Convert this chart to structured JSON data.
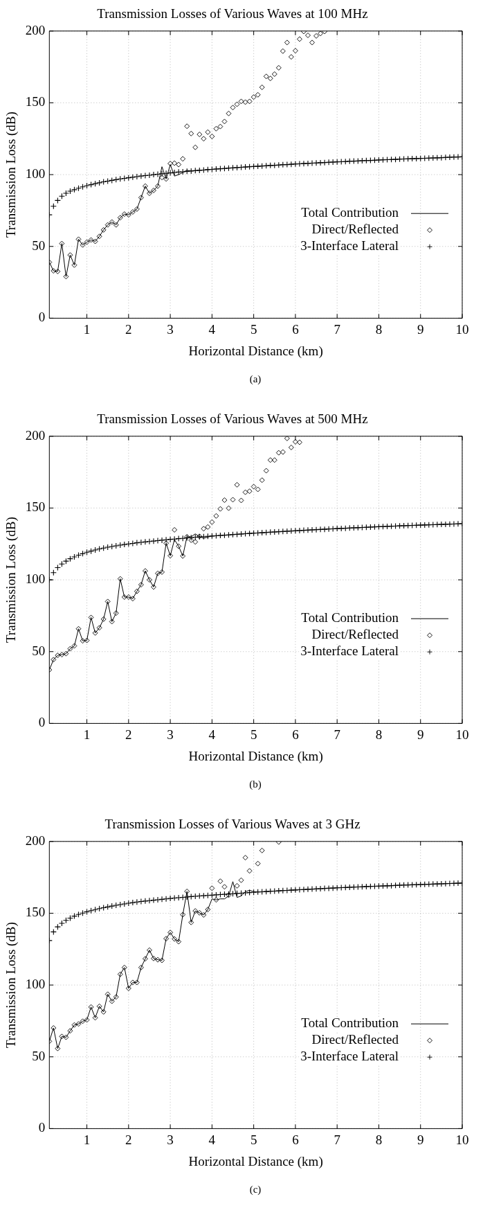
{
  "chart_data": [
    {
      "type": "line",
      "title": "Transmission Losses of Various Waves at 100 MHz",
      "xlabel": "Horizontal Distance (km)",
      "ylabel": "Transmission Loss (dB)",
      "xlim": [
        0.1,
        10
      ],
      "xticks": [
        1,
        2,
        3,
        4,
        5,
        6,
        7,
        8,
        9,
        10
      ],
      "ylim": [
        0,
        200
      ],
      "yticks": [
        0,
        50,
        100,
        150,
        200
      ],
      "grid": true,
      "legend": "bottom right",
      "annotations": [
        "(a)"
      ],
      "series": [
        {
          "name": "Total Contribution",
          "type": "line",
          "marker": "none",
          "color": "#000000",
          "x": [
            0.1,
            0.2,
            0.3,
            0.4,
            0.5,
            0.6,
            0.7,
            0.8,
            0.9,
            1.0,
            1.1,
            1.2,
            1.3,
            1.4,
            1.5,
            1.6,
            1.7,
            1.8,
            1.9,
            2.0,
            2.1,
            2.2,
            2.3,
            2.4,
            2.5,
            2.6,
            2.7,
            2.8,
            2.9,
            3.0,
            3.1,
            3.2,
            3.3,
            3.4,
            3.5,
            3.6,
            3.7,
            3.8,
            3.9,
            4.0,
            4.1,
            4.2,
            4.3,
            4.4,
            4.5,
            4.6,
            4.7,
            4.8,
            4.9,
            5.0,
            5.1,
            5.2,
            5.3,
            5.4,
            5.5,
            5.6,
            5.7,
            5.8,
            5.9,
            6.0,
            6.1,
            6.2,
            6.3,
            6.4,
            6.5,
            6.6,
            6.7,
            6.8,
            6.9,
            7.0,
            7.1,
            7.2,
            7.3,
            7.4,
            7.5,
            7.6,
            7.7,
            7.8,
            7.9,
            8.0,
            8.1,
            8.2,
            8.3,
            8.4,
            8.5,
            8.6,
            8.7,
            8.8,
            8.9,
            9.0,
            9.1,
            9.2,
            9.3,
            9.4,
            9.5,
            9.6,
            9.7,
            9.8,
            9.9,
            10.0
          ],
          "values": [
            39,
            33,
            32.6,
            52,
            29,
            44,
            37,
            55,
            51,
            53,
            54.5,
            53.5,
            57,
            61.5,
            65,
            67,
            65,
            70,
            72.5,
            72,
            74,
            76,
            84,
            92,
            87,
            89,
            92,
            105.5,
            97,
            107,
            99,
            100,
            101.5,
            103,
            102.5,
            102.8,
            103,
            103.2,
            103.5,
            103.7,
            103.9,
            104.1,
            104.3,
            104.5,
            104.7,
            104.9,
            105.1,
            105.3,
            105.5,
            105.7,
            105.8,
            106,
            106.2,
            106.4,
            106.5,
            106.7,
            106.9,
            107,
            107.2,
            107.4,
            107.5,
            107.7,
            107.8,
            108,
            108.1,
            108.3,
            108.4,
            108.6,
            108.7,
            108.9,
            109,
            109.1,
            109.3,
            109.4,
            109.5,
            109.7,
            109.8,
            109.9,
            110,
            110.2,
            110.3,
            110.4,
            110.5,
            110.6,
            110.8,
            110.9,
            111,
            111.1,
            111.2,
            111.3,
            111.4,
            111.5,
            111.6,
            111.7,
            111.8,
            112,
            112.1,
            112.2,
            112.3,
            112.4
          ]
        },
        {
          "name": "Direct/Reflected",
          "type": "scatter",
          "marker": "diamond",
          "color": "#000000",
          "x": [
            0.1,
            0.2,
            0.3,
            0.4,
            0.5,
            0.6,
            0.7,
            0.8,
            0.9,
            1.0,
            1.1,
            1.2,
            1.3,
            1.4,
            1.5,
            1.6,
            1.7,
            1.8,
            1.9,
            2.0,
            2.1,
            2.2,
            2.3,
            2.4,
            2.5,
            2.6,
            2.7,
            2.8,
            2.9,
            3.0,
            3.1,
            3.2,
            3.3,
            3.4,
            3.5,
            3.6,
            3.7,
            3.8,
            3.9,
            4.0,
            4.1,
            4.2,
            4.3,
            4.4,
            4.5,
            4.6,
            4.7,
            4.8,
            4.9,
            5.0,
            5.1,
            5.2,
            5.3,
            5.4,
            5.5,
            5.6,
            5.7,
            5.8,
            5.9,
            6.0,
            6.1,
            6.2,
            6.3,
            6.4,
            6.5,
            6.6,
            6.7
          ],
          "values": [
            39,
            33,
            32.6,
            52,
            29,
            44,
            37,
            55,
            51,
            53,
            54.5,
            53.5,
            57,
            61.5,
            65,
            67,
            65,
            70,
            72.5,
            72,
            74,
            76,
            84,
            92,
            87,
            89,
            92,
            98,
            97,
            107.7,
            108,
            107,
            111,
            133.7,
            128.6,
            119,
            128,
            125,
            129.6,
            126.6,
            132,
            133.5,
            137,
            142.6,
            146.7,
            149,
            151,
            150.5,
            151,
            154,
            155.6,
            160.8,
            168.4,
            167,
            170,
            174.4,
            186,
            192,
            182,
            186.3,
            194.4,
            199.7,
            197,
            192,
            196.6,
            198.3,
            199.7
          ]
        },
        {
          "name": "3-Interface Lateral",
          "type": "scatter",
          "marker": "cross",
          "color": "#000000",
          "x": [
            0.1,
            0.2,
            0.3,
            0.4,
            0.5,
            0.6,
            0.7,
            0.8,
            0.9,
            1.0,
            1.1,
            1.2,
            1.3,
            1.4,
            1.5,
            1.6,
            1.7,
            1.8,
            1.9,
            2.0,
            2.1,
            2.2,
            2.3,
            2.4,
            2.5,
            2.6,
            2.7,
            2.8,
            2.9,
            3.0,
            3.1,
            3.2,
            3.3,
            3.4,
            3.5,
            3.6,
            3.7,
            3.8,
            3.9,
            4.0,
            4.1,
            4.2,
            4.3,
            4.4,
            4.5,
            4.6,
            4.7,
            4.8,
            4.9,
            5.0,
            5.1,
            5.2,
            5.3,
            5.4,
            5.5,
            5.6,
            5.7,
            5.8,
            5.9,
            6.0,
            6.1,
            6.2,
            6.3,
            6.4,
            6.5,
            6.6,
            6.7,
            6.8,
            6.9,
            7.0,
            7.1,
            7.2,
            7.3,
            7.4,
            7.5,
            7.6,
            7.7,
            7.8,
            7.9,
            8.0,
            8.1,
            8.2,
            8.3,
            8.4,
            8.5,
            8.6,
            8.7,
            8.8,
            8.9,
            9.0,
            9.1,
            9.2,
            9.3,
            9.4,
            9.5,
            9.6,
            9.7,
            9.8,
            9.9,
            10.0
          ],
          "values": [
            72,
            78,
            82,
            85,
            87,
            88.5,
            89.5,
            90.5,
            91.5,
            92.3,
            93,
            93.7,
            94.3,
            95,
            95.5,
            96,
            96.5,
            97,
            97.4,
            97.8,
            98.2,
            98.6,
            99,
            99.3,
            99.6,
            100,
            100.3,
            100.6,
            100.9,
            101.2,
            101.5,
            101.8,
            102,
            102.3,
            102.5,
            102.8,
            103,
            103.2,
            103.5,
            103.7,
            103.9,
            104.1,
            104.3,
            104.5,
            104.7,
            104.9,
            105.1,
            105.3,
            105.5,
            105.7,
            105.8,
            106,
            106.2,
            106.4,
            106.5,
            106.7,
            106.9,
            107,
            107.2,
            107.4,
            107.5,
            107.7,
            107.8,
            108,
            108.1,
            108.3,
            108.4,
            108.6,
            108.7,
            108.9,
            109,
            109.1,
            109.3,
            109.4,
            109.5,
            109.7,
            109.8,
            109.9,
            110,
            110.2,
            110.3,
            110.4,
            110.5,
            110.6,
            110.8,
            110.9,
            111,
            111.1,
            111.2,
            111.3,
            111.4,
            111.5,
            111.6,
            111.7,
            111.8,
            112,
            112.1,
            112.2,
            112.3,
            112.4
          ]
        }
      ]
    },
    {
      "type": "line",
      "title": "Transmission Losses of Various Waves at 500 MHz",
      "xlabel": "Horizontal Distance (km)",
      "ylabel": "Transmission Loss (dB)",
      "xlim": [
        0.1,
        10
      ],
      "xticks": [
        1,
        2,
        3,
        4,
        5,
        6,
        7,
        8,
        9,
        10
      ],
      "ylim": [
        0,
        200
      ],
      "yticks": [
        0,
        50,
        100,
        150,
        200
      ],
      "grid": true,
      "legend": "bottom right",
      "annotations": [
        "(b)"
      ],
      "series": [
        {
          "name": "Total Contribution",
          "type": "line",
          "marker": "none",
          "color": "#000000",
          "x": [
            0.1,
            0.2,
            0.3,
            0.4,
            0.5,
            0.6,
            0.7,
            0.8,
            0.9,
            1.0,
            1.1,
            1.2,
            1.3,
            1.4,
            1.5,
            1.6,
            1.7,
            1.8,
            1.9,
            2.0,
            2.1,
            2.2,
            2.3,
            2.4,
            2.5,
            2.6,
            2.7,
            2.8,
            2.9,
            3.0,
            3.1,
            3.2,
            3.3,
            3.4,
            3.5,
            3.6,
            3.7,
            3.8,
            4,
            5,
            6,
            7,
            8,
            9,
            10
          ],
          "values": [
            37.3,
            44.4,
            47.4,
            47.9,
            48.6,
            52,
            54,
            65.9,
            57.5,
            57.8,
            73.8,
            63,
            66.6,
            72.6,
            84.9,
            70.9,
            76.8,
            100.7,
            88,
            88,
            86.9,
            92,
            96.6,
            106.2,
            100,
            95,
            104.5,
            105.4,
            125.5,
            116.8,
            128,
            123.4,
            116.6,
            130,
            130,
            132,
            130,
            129,
            130.5,
            132.5,
            134.2,
            135.7,
            137,
            138.1,
            139.1
          ]
        },
        {
          "name": "Direct/Reflected",
          "type": "scatter",
          "marker": "diamond",
          "color": "#000000",
          "x": [
            0.1,
            0.2,
            0.3,
            0.4,
            0.5,
            0.6,
            0.7,
            0.8,
            0.9,
            1.0,
            1.1,
            1.2,
            1.3,
            1.4,
            1.5,
            1.6,
            1.7,
            1.8,
            1.9,
            2.0,
            2.1,
            2.2,
            2.3,
            2.4,
            2.5,
            2.6,
            2.7,
            2.8,
            2.9,
            3.0,
            3.1,
            3.2,
            3.3,
            3.4,
            3.5,
            3.6,
            3.7,
            3.8,
            3.9,
            4.0,
            4.1,
            4.2,
            4.3,
            4.4,
            4.5,
            4.6,
            4.7,
            4.8,
            4.9,
            5.0,
            5.1,
            5.2,
            5.3,
            5.4,
            5.5,
            5.6,
            5.7,
            5.8,
            5.9,
            6.0,
            6.1
          ],
          "values": [
            37.3,
            44.4,
            47.4,
            47.9,
            48.6,
            52,
            54,
            65.9,
            57.5,
            57.8,
            73.8,
            63,
            66.6,
            72.6,
            84.9,
            70.9,
            76.8,
            100.7,
            88,
            88,
            86.9,
            92,
            96.6,
            106.2,
            100,
            95,
            104.5,
            105.4,
            125.5,
            116.8,
            134.8,
            123.4,
            116.6,
            130,
            127.6,
            126.4,
            130.3,
            135.6,
            136.8,
            140.2,
            144.5,
            149.4,
            155.5,
            149.9,
            155.8,
            166.2,
            155.3,
            161,
            161.7,
            164.9,
            163,
            169.4,
            176,
            183.4,
            183.4,
            188.5,
            189,
            198.5,
            192.2,
            196.1,
            195.8
          ]
        },
        {
          "name": "3-Interface Lateral",
          "type": "scatter",
          "marker": "cross",
          "color": "#000000",
          "x": [
            0.1,
            0.2,
            0.3,
            0.4,
            0.5,
            0.6,
            0.7,
            0.8,
            0.9,
            1.0,
            1.1,
            1.2,
            1.3,
            1.4,
            1.5,
            1.6,
            1.7,
            1.8,
            1.9,
            2.0,
            2.1,
            2.2,
            2.3,
            2.4,
            2.5,
            2.6,
            2.7,
            2.8,
            2.9,
            3.0,
            3.1,
            3.2,
            3.3,
            3.4,
            3.5,
            3.6,
            3.7,
            3.8,
            3.9,
            4.0,
            4.1,
            4.2,
            4.3,
            4.4,
            4.5,
            4.6,
            4.7,
            4.8,
            4.9,
            5.0,
            5.1,
            5.2,
            5.3,
            5.4,
            5.5,
            5.6,
            5.7,
            5.8,
            5.9,
            6.0,
            6.1,
            6.2,
            6.3,
            6.4,
            6.5,
            6.6,
            6.7,
            6.8,
            6.9,
            7.0,
            7.1,
            7.2,
            7.3,
            7.4,
            7.5,
            7.6,
            7.7,
            7.8,
            7.9,
            8.0,
            8.1,
            8.2,
            8.3,
            8.4,
            8.5,
            8.6,
            8.7,
            8.8,
            8.9,
            9.0,
            9.1,
            9.2,
            9.3,
            9.4,
            9.5,
            9.6,
            9.7,
            9.8,
            9.9,
            10.0
          ],
          "values": [
            100,
            105,
            108.5,
            111,
            113,
            114.7,
            116,
            117.2,
            118.2,
            119.2,
            120,
            120.8,
            121.5,
            122.1,
            122.7,
            123.2,
            123.7,
            124.2,
            124.6,
            125,
            125.4,
            125.8,
            126.1,
            126.4,
            126.7,
            127,
            127.3,
            127.6,
            127.9,
            128.2,
            128.4,
            128.7,
            128.9,
            129.2,
            129.4,
            129.6,
            129.9,
            130.1,
            130.3,
            130.5,
            130.7,
            130.9,
            131.1,
            131.3,
            131.5,
            131.7,
            131.9,
            132.1,
            132.3,
            132.5,
            132.6,
            132.8,
            133,
            133.2,
            133.3,
            133.5,
            133.7,
            133.8,
            134,
            134.2,
            134.3,
            134.5,
            134.6,
            134.8,
            134.9,
            135.1,
            135.2,
            135.4,
            135.5,
            135.7,
            135.8,
            135.9,
            136.1,
            136.2,
            136.3,
            136.5,
            136.6,
            136.7,
            136.8,
            137,
            137.1,
            137.2,
            137.3,
            137.4,
            137.6,
            137.7,
            137.8,
            137.9,
            138,
            138.1,
            138.2,
            138.3,
            138.4,
            138.5,
            138.6,
            138.7,
            138.8,
            138.9,
            139,
            139.1
          ]
        }
      ]
    },
    {
      "type": "line",
      "title": "Transmission Losses of Various Waves at 3 GHz",
      "xlabel": "Horizontal Distance (km)",
      "ylabel": "Transmission Loss (dB)",
      "xlim": [
        0.1,
        10
      ],
      "xticks": [
        1,
        2,
        3,
        4,
        5,
        6,
        7,
        8,
        9,
        10
      ],
      "ylim": [
        0,
        200
      ],
      "yticks": [
        0,
        50,
        100,
        150,
        200
      ],
      "grid": true,
      "legend": "bottom right",
      "annotations": [
        "(c)"
      ],
      "series": [
        {
          "name": "Total Contribution",
          "type": "line",
          "marker": "none",
          "color": "#000000",
          "x": [
            0.1,
            0.2,
            0.3,
            0.4,
            0.5,
            0.6,
            0.7,
            0.8,
            0.9,
            1.0,
            1.1,
            1.2,
            1.3,
            1.4,
            1.5,
            1.6,
            1.7,
            1.8,
            1.9,
            2.0,
            2.1,
            2.2,
            2.3,
            2.4,
            2.5,
            2.6,
            2.7,
            2.8,
            2.9,
            3.0,
            3.1,
            3.2,
            3.3,
            3.4,
            3.5,
            3.6,
            3.7,
            3.8,
            3.9,
            4.0,
            4.1,
            4.2,
            4.3,
            4.4,
            4.5,
            4.6,
            4.7,
            4.8,
            4.9,
            5.0,
            5.1,
            5.2,
            5.3,
            5.4,
            5.5,
            5.6,
            5.7,
            5.8,
            5.9,
            6.0,
            6.1,
            6.2,
            6.3,
            6.4,
            6.5,
            6.6,
            6.7,
            6.8,
            6.9,
            7.0,
            7.1,
            7.2,
            7.3,
            7.4,
            7.5,
            7.6,
            7.7,
            7.8,
            7.9,
            8.0,
            8.1,
            8.2,
            8.3,
            8.4,
            8.5,
            8.6,
            8.7,
            8.8,
            8.9,
            9.0,
            9.1,
            9.2,
            9.3,
            9.4,
            9.5,
            9.6,
            9.7,
            9.8,
            9.9,
            10.0
          ],
          "values": [
            60.8,
            70.1,
            55.8,
            64.2,
            63.6,
            68.1,
            72.2,
            72.9,
            74.8,
            75.7,
            84.7,
            77.2,
            85.2,
            81.3,
            93.6,
            88.7,
            91.7,
            107.5,
            112.2,
            97.7,
            101.8,
            101.8,
            112.2,
            118.3,
            124.3,
            118.5,
            117.6,
            117.2,
            132.3,
            136.6,
            132.1,
            130.2,
            149,
            165.2,
            143.6,
            151.6,
            150.3,
            148.8,
            152.6,
            160,
            159.3,
            160,
            160,
            162,
            172,
            161,
            162,
            165,
            166,
            165,
            164.8,
            164.9,
            165.1,
            165.3,
            165.4,
            165.6,
            165.8,
            165.9,
            166.1,
            166.2,
            166.4,
            166.5,
            166.7,
            166.8,
            167,
            167.1,
            167.3,
            167.4,
            167.5,
            167.7,
            167.8,
            167.9,
            168.1,
            168.2,
            168.3,
            168.4,
            168.6,
            168.7,
            168.8,
            168.9,
            169,
            169.1,
            169.2,
            169.4,
            169.5,
            169.6,
            169.7,
            169.8,
            169.9,
            170,
            170.1,
            170.2,
            170.3,
            170.4,
            170.5,
            170.6,
            170.7,
            170.8,
            170.9,
            171
          ]
        },
        {
          "name": "Direct/Reflected",
          "type": "scatter",
          "marker": "diamond",
          "color": "#000000",
          "x": [
            0.1,
            0.2,
            0.3,
            0.4,
            0.5,
            0.6,
            0.7,
            0.8,
            0.9,
            1.0,
            1.1,
            1.2,
            1.3,
            1.4,
            1.5,
            1.6,
            1.7,
            1.8,
            1.9,
            2.0,
            2.1,
            2.2,
            2.3,
            2.4,
            2.5,
            2.6,
            2.7,
            2.8,
            2.9,
            3.0,
            3.1,
            3.2,
            3.3,
            3.4,
            3.5,
            3.6,
            3.7,
            3.8,
            3.9,
            4.0,
            4.1,
            4.2,
            4.3,
            4.4,
            4.6,
            4.7,
            4.8,
            4.9,
            5.1,
            5.2,
            5.6
          ],
          "values": [
            60.8,
            70.1,
            55.8,
            64.2,
            63.6,
            68.1,
            72.2,
            72.9,
            74.8,
            75.7,
            84.7,
            77.2,
            85.2,
            81.3,
            93.6,
            88.7,
            91.7,
            107.5,
            112.2,
            97.7,
            101.8,
            101.8,
            112.2,
            118.3,
            124.3,
            118.5,
            117.6,
            117.2,
            132.3,
            136.6,
            132.1,
            130.2,
            149,
            165.2,
            143.6,
            151.6,
            150.3,
            148.8,
            152.6,
            167.4,
            159.3,
            172.3,
            168.4,
            162.6,
            169.1,
            173,
            188.7,
            179.5,
            184.6,
            193.7,
            199.6
          ]
        },
        {
          "name": "3-Interface Lateral",
          "type": "scatter",
          "marker": "cross",
          "color": "#000000",
          "x": [
            0.1,
            0.2,
            0.3,
            0.4,
            0.5,
            0.6,
            0.7,
            0.8,
            0.9,
            1.0,
            1.1,
            1.2,
            1.3,
            1.4,
            1.5,
            1.6,
            1.7,
            1.8,
            1.9,
            2.0,
            2.1,
            2.2,
            2.3,
            2.4,
            2.5,
            2.6,
            2.7,
            2.8,
            2.9,
            3.0,
            3.1,
            3.2,
            3.3,
            3.4,
            3.5,
            3.6,
            3.7,
            3.8,
            3.9,
            4.0,
            4.1,
            4.2,
            4.3,
            4.4,
            4.5,
            4.6,
            4.7,
            4.8,
            4.9,
            5.0,
            5.1,
            5.2,
            5.3,
            5.4,
            5.5,
            5.6,
            5.7,
            5.8,
            5.9,
            6.0,
            6.1,
            6.2,
            6.3,
            6.4,
            6.5,
            6.6,
            6.7,
            6.8,
            6.9,
            7.0,
            7.1,
            7.2,
            7.3,
            7.4,
            7.5,
            7.6,
            7.7,
            7.8,
            7.9,
            8.0,
            8.1,
            8.2,
            8.3,
            8.4,
            8.5,
            8.6,
            8.7,
            8.8,
            8.9,
            9.0,
            9.1,
            9.2,
            9.3,
            9.4,
            9.5,
            9.6,
            9.7,
            9.8,
            9.9,
            10.0
          ],
          "values": [
            131,
            137,
            140.5,
            143,
            145,
            146.6,
            148,
            149.1,
            150.1,
            151,
            151.8,
            152.5,
            153.2,
            153.8,
            154.4,
            155,
            155.5,
            156,
            156.5,
            157,
            157.4,
            157.8,
            158.2,
            158.5,
            158.8,
            159.1,
            159.4,
            159.7,
            160,
            160.3,
            160.6,
            160.8,
            161.1,
            161.3,
            161.6,
            161.8,
            162,
            162.2,
            162.4,
            162.6,
            162.8,
            163,
            163.2,
            163.4,
            163.6,
            163.8,
            164,
            164.2,
            164.4,
            164.6,
            164.8,
            164.9,
            165.1,
            165.3,
            165.4,
            165.6,
            165.8,
            165.9,
            166.1,
            166.2,
            166.4,
            166.5,
            166.7,
            166.8,
            167,
            167.1,
            167.3,
            167.4,
            167.5,
            167.7,
            167.8,
            167.9,
            168.1,
            168.2,
            168.3,
            168.4,
            168.6,
            168.7,
            168.8,
            168.9,
            169,
            169.1,
            169.2,
            169.4,
            169.5,
            169.6,
            169.7,
            169.8,
            169.9,
            170,
            170.1,
            170.2,
            170.3,
            170.4,
            170.5,
            170.6,
            170.7,
            170.8,
            170.9,
            171
          ]
        }
      ]
    }
  ]
}
